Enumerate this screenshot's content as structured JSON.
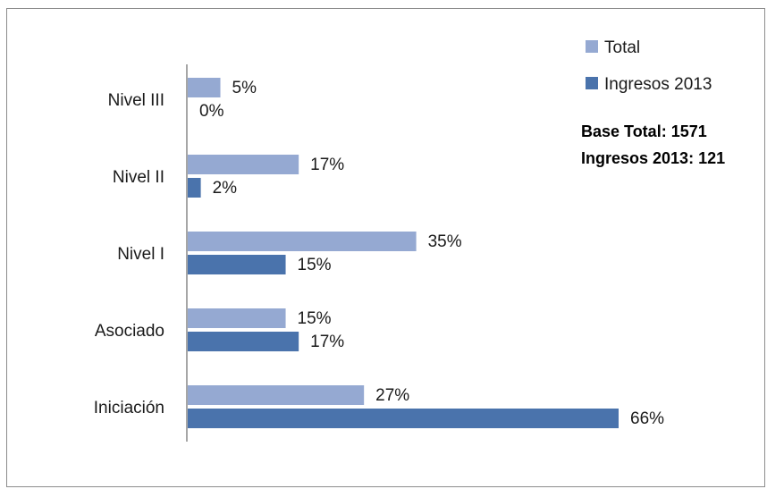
{
  "chart_data": {
    "type": "bar",
    "orientation": "horizontal",
    "categories": [
      "Nivel III",
      "Nivel II",
      "Nivel I",
      "Asociado",
      "Iniciación"
    ],
    "series": [
      {
        "name": "Total",
        "values": [
          5,
          17,
          35,
          15,
          27
        ],
        "labels": [
          "5%",
          "17%",
          "35%",
          "15%",
          "27%"
        ],
        "color": "#95A9D2"
      },
      {
        "name": "Ingresos 2013",
        "values": [
          0,
          2,
          15,
          17,
          66
        ],
        "labels": [
          "0%",
          "2%",
          "15%",
          "17%",
          "66%"
        ],
        "color": "#4A73AC"
      }
    ],
    "xlim": [
      0,
      70
    ],
    "unit": "%",
    "grid": false,
    "legend_position": "top-right",
    "annotations": [
      "Base Total:  1571",
      "Ingresos 2013: 121"
    ]
  }
}
